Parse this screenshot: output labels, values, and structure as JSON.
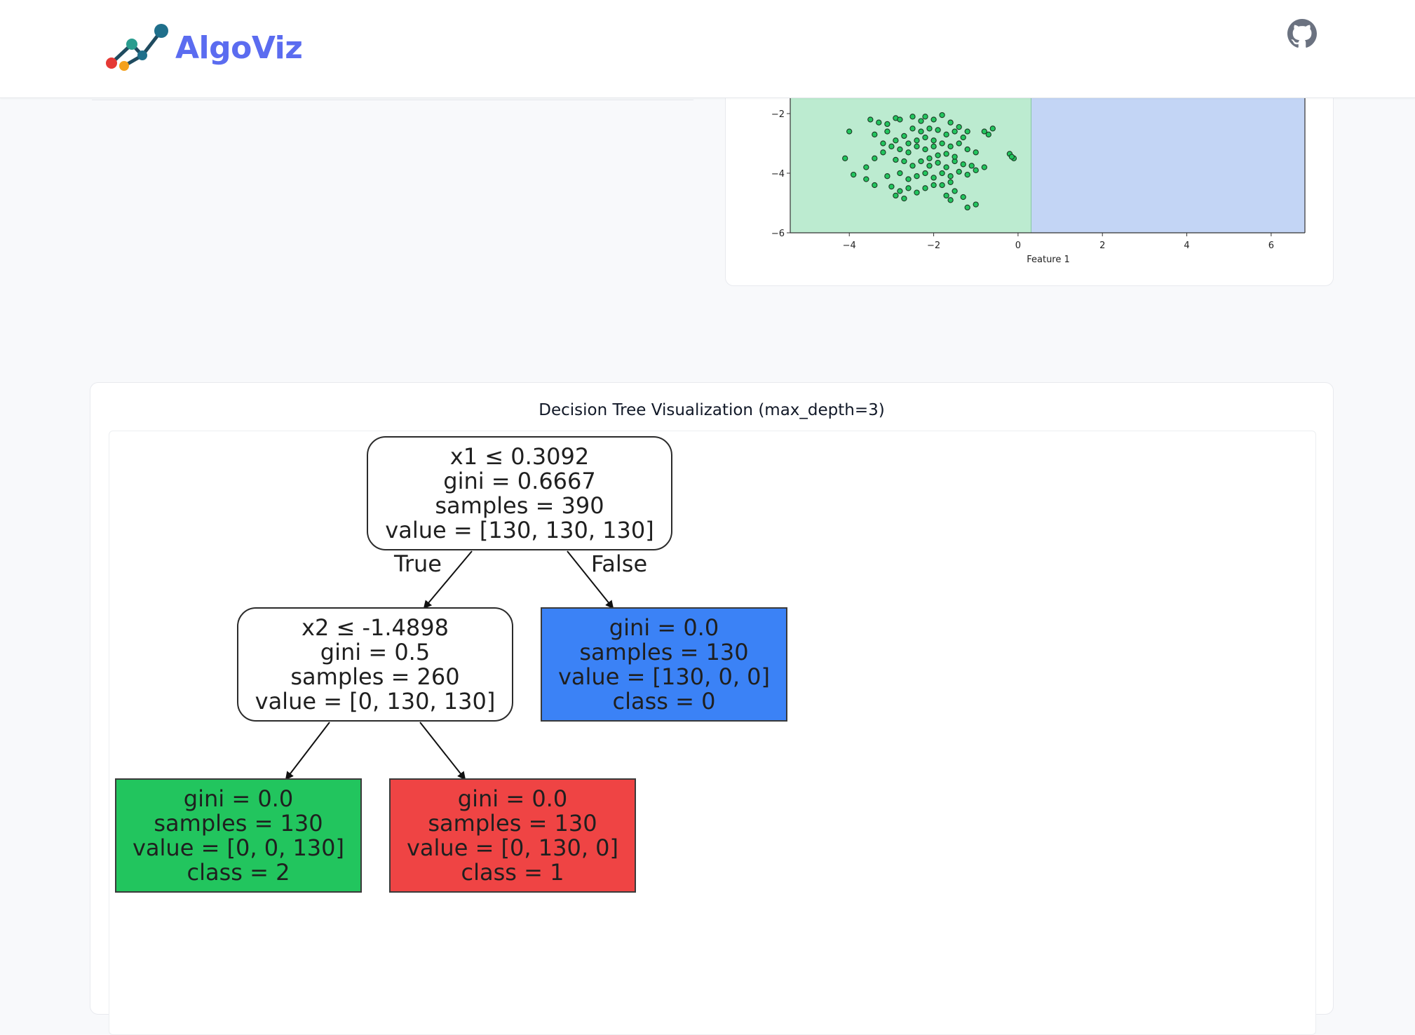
{
  "app": {
    "brand": "AlgoViz",
    "github_icon": "github-icon",
    "logo_icon": "chart-line-logo-icon"
  },
  "colors": {
    "brand": "#5b6cf0",
    "region_green": "#bcebd0",
    "region_blue": "#c3d5f5",
    "point_green": "#22c55e",
    "leaf_blue": "#3b82f6",
    "leaf_green": "#22c55e",
    "leaf_red": "#ef4444"
  },
  "scatter_plot": {
    "xlabel": "Feature 1",
    "x_ticks": [
      "−4",
      "−2",
      "0",
      "2",
      "4",
      "6"
    ],
    "y_ticks": [
      "−2",
      "−4",
      "−6"
    ],
    "x_range": [
      -5.4,
      6.8
    ],
    "y_range_visible": [
      -6.1,
      -1.9
    ],
    "boundary_x": 0.3092,
    "region_left": "class 2",
    "region_right": "class 0",
    "points": [
      [
        -4.0,
        -2.6
      ],
      [
        -3.5,
        -2.2
      ],
      [
        -3.3,
        -2.3
      ],
      [
        -3.1,
        -2.35
      ],
      [
        -2.9,
        -2.15
      ],
      [
        -2.8,
        -2.2
      ],
      [
        -2.5,
        -2.1
      ],
      [
        -2.3,
        -2.25
      ],
      [
        -2.2,
        -2.1
      ],
      [
        -2.0,
        -2.2
      ],
      [
        -1.8,
        -2.05
      ],
      [
        -1.6,
        -2.3
      ],
      [
        -1.4,
        -2.45
      ],
      [
        -1.2,
        -2.6
      ],
      [
        -0.8,
        -2.6
      ],
      [
        -0.6,
        -2.5
      ],
      [
        -0.7,
        -2.7
      ],
      [
        -3.4,
        -2.7
      ],
      [
        -3.1,
        -2.6
      ],
      [
        -2.9,
        -2.9
      ],
      [
        -2.7,
        -2.75
      ],
      [
        -2.5,
        -2.5
      ],
      [
        -2.3,
        -2.6
      ],
      [
        -2.1,
        -2.5
      ],
      [
        -1.9,
        -2.55
      ],
      [
        -1.7,
        -2.7
      ],
      [
        -1.5,
        -2.6
      ],
      [
        -1.3,
        -2.8
      ],
      [
        -2.6,
        -3.0
      ],
      [
        -2.4,
        -2.9
      ],
      [
        -2.2,
        -2.8
      ],
      [
        -2.0,
        -2.9
      ],
      [
        -3.2,
        -3.0
      ],
      [
        -3.0,
        -3.1
      ],
      [
        -2.8,
        -3.2
      ],
      [
        -2.6,
        -3.3
      ],
      [
        -2.4,
        -3.1
      ],
      [
        -2.2,
        -3.2
      ],
      [
        -2.0,
        -3.1
      ],
      [
        -1.8,
        -3.0
      ],
      [
        -1.6,
        -3.1
      ],
      [
        -1.4,
        -3.0
      ],
      [
        -1.2,
        -3.2
      ],
      [
        -1.0,
        -3.3
      ],
      [
        -1.7,
        -3.35
      ],
      [
        -1.9,
        -3.4
      ],
      [
        -2.1,
        -3.5
      ],
      [
        -4.1,
        -3.5
      ],
      [
        -3.4,
        -3.5
      ],
      [
        -3.2,
        -3.3
      ],
      [
        -2.9,
        -3.55
      ],
      [
        -2.7,
        -3.6
      ],
      [
        -2.5,
        -3.75
      ],
      [
        -2.3,
        -3.6
      ],
      [
        -2.1,
        -3.75
      ],
      [
        -1.9,
        -3.65
      ],
      [
        -1.7,
        -3.8
      ],
      [
        -1.5,
        -3.6
      ],
      [
        -1.3,
        -3.7
      ],
      [
        -1.1,
        -3.75
      ],
      [
        -1.5,
        -3.45
      ],
      [
        -0.2,
        -3.35
      ],
      [
        -0.1,
        -3.5
      ],
      [
        -0.15,
        -3.45
      ],
      [
        -3.9,
        -4.05
      ],
      [
        -3.6,
        -3.8
      ],
      [
        -3.1,
        -4.1
      ],
      [
        -2.8,
        -4.0
      ],
      [
        -2.6,
        -4.2
      ],
      [
        -2.4,
        -4.1
      ],
      [
        -2.2,
        -4.0
      ],
      [
        -2.0,
        -4.15
      ],
      [
        -1.8,
        -4.0
      ],
      [
        -1.6,
        -4.1
      ],
      [
        -1.4,
        -3.95
      ],
      [
        -1.2,
        -4.05
      ],
      [
        -1.0,
        -3.9
      ],
      [
        -0.8,
        -3.8
      ],
      [
        -1.6,
        -4.3
      ],
      [
        -1.8,
        -4.4
      ],
      [
        -3.6,
        -4.2
      ],
      [
        -3.4,
        -4.4
      ],
      [
        -3.0,
        -4.45
      ],
      [
        -2.8,
        -4.6
      ],
      [
        -2.6,
        -4.5
      ],
      [
        -2.4,
        -4.65
      ],
      [
        -2.2,
        -4.5
      ],
      [
        -2.0,
        -4.4
      ],
      [
        -1.7,
        -4.75
      ],
      [
        -1.5,
        -4.6
      ],
      [
        -1.3,
        -4.8
      ],
      [
        -2.9,
        -4.75
      ],
      [
        -2.7,
        -4.85
      ],
      [
        -1.0,
        -5.05
      ],
      [
        -1.2,
        -5.15
      ],
      [
        -1.6,
        -4.9
      ]
    ]
  },
  "tree_section": {
    "title": "Decision Tree Visualization (max_depth=3)",
    "edge_true": "True",
    "edge_false": "False",
    "nodes": {
      "root": {
        "line1": "x1 ≤ 0.3092",
        "line2": "gini = 0.6667",
        "line3": "samples = 390",
        "line4": "value = [130, 130, 130]"
      },
      "left": {
        "line1": "x2 ≤ -1.4898",
        "line2": "gini = 0.5",
        "line3": "samples = 260",
        "line4": "value = [0, 130, 130]"
      },
      "right": {
        "line1": "gini = 0.0",
        "line2": "samples = 130",
        "line3": "value = [130, 0, 0]",
        "line4": "class = 0"
      },
      "leaf_ll": {
        "line1": "gini = 0.0",
        "line2": "samples = 130",
        "line3": "value = [0, 0, 130]",
        "line4": "class = 2"
      },
      "leaf_lr": {
        "line1": "gini = 0.0",
        "line2": "samples = 130",
        "line3": "value = [0, 130, 0]",
        "line4": "class = 1"
      }
    }
  }
}
